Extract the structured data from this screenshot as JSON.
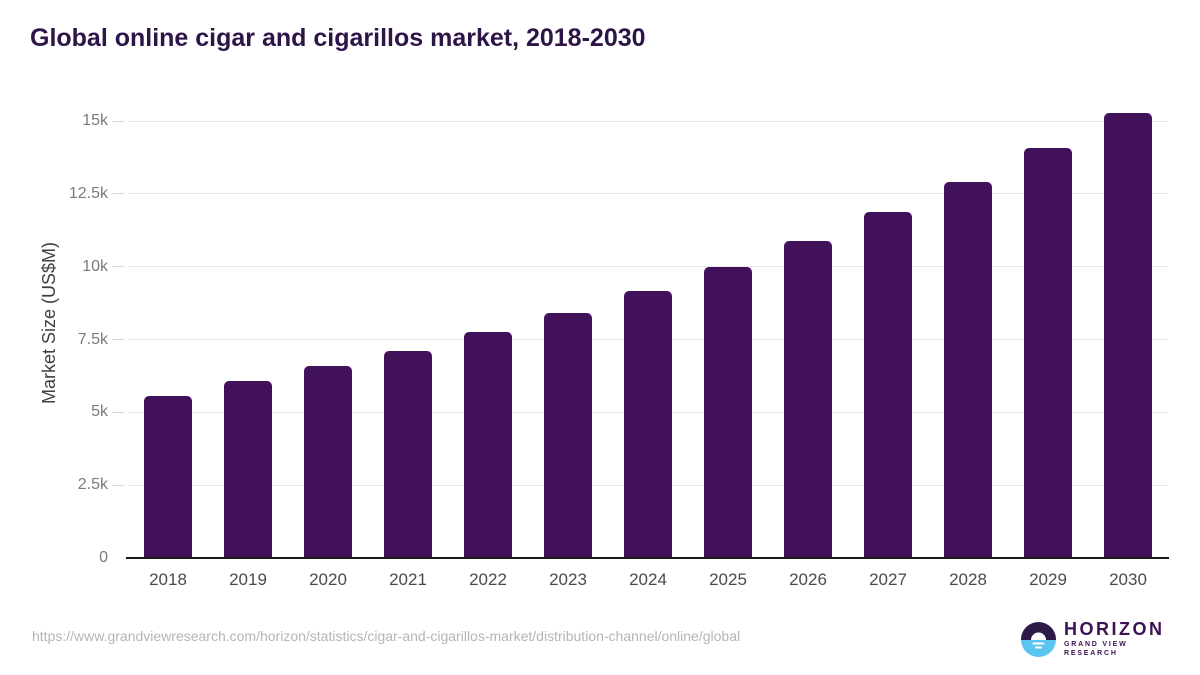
{
  "header": {
    "title": "Global online cigar and cigarillos market, 2018-2030"
  },
  "chart_data": {
    "type": "bar",
    "title": "Global online cigar and cigarillos market, 2018-2030",
    "categories": [
      "2018",
      "2019",
      "2020",
      "2021",
      "2022",
      "2023",
      "2024",
      "2025",
      "2026",
      "2027",
      "2028",
      "2029",
      "2030"
    ],
    "values": [
      5560,
      6080,
      6580,
      7120,
      7760,
      8420,
      9170,
      9980,
      10890,
      11870,
      12900,
      14060,
      15280
    ],
    "xlabel": "",
    "ylabel": "Market Size (US$M)",
    "ylim": [
      0,
      15500
    ],
    "yticks": [
      {
        "value": 0,
        "label": "0"
      },
      {
        "value": 2500,
        "label": "2.5k"
      },
      {
        "value": 5000,
        "label": "5k"
      },
      {
        "value": 7500,
        "label": "7.5k"
      },
      {
        "value": 10000,
        "label": "10k"
      },
      {
        "value": 12500,
        "label": "12.5k"
      },
      {
        "value": 15000,
        "label": "15k"
      }
    ],
    "grid": true,
    "legend": "none",
    "bar_color": "#41125a"
  },
  "footer": {
    "source_url": "https://www.grandviewresearch.com/horizon/statistics/cigar-and-cigarillos-market/distribution-channel/online/global",
    "logo": {
      "brand": "HORIZON",
      "sub_brand": "GRAND VIEW RESEARCH",
      "icon": "horizon-sunrise-icon",
      "colors": {
        "purple": "#2e1a47",
        "blue": "#5bc5f2",
        "text": "#3d1152"
      }
    }
  },
  "colors": {
    "title_text": "#2e1548",
    "bar": "#41125a",
    "gridline": "#e8e8e8",
    "axis_line": "#1a1a1a",
    "tick_label": "#7b7b7b",
    "category_label": "#4a4a4a",
    "url_text": "#b5b5b5"
  }
}
